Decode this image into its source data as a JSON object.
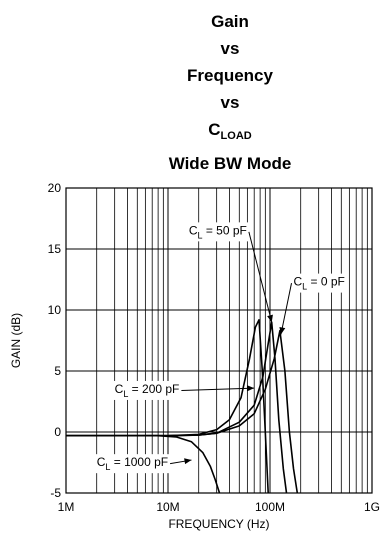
{
  "chart_data": {
    "type": "line",
    "title_lines": [
      "Gain",
      "vs",
      "Frequency",
      "vs"
    ],
    "title_cload_main": "C",
    "title_cload_sub": "LOAD",
    "subtitle": "Wide BW Mode",
    "xlabel": "FREQUENCY (Hz)",
    "ylabel": "GAIN (dB)",
    "xscale": "log",
    "xlim": [
      1000000,
      1000000000
    ],
    "ylim": [
      -5,
      20
    ],
    "x_ticks": [
      {
        "value": 1000000,
        "label": "1M"
      },
      {
        "value": 10000000,
        "label": "10M"
      },
      {
        "value": 100000000,
        "label": "100M"
      },
      {
        "value": 1000000000,
        "label": "1G"
      }
    ],
    "y_ticks": [
      -5,
      0,
      5,
      10,
      15,
      20
    ],
    "grid": true,
    "series": [
      {
        "name": "CL = 0 pF",
        "label_main": "C",
        "label_sub": "L",
        "label_rest": " = 0 pF",
        "x": [
          1000000,
          10000000,
          20000000,
          30000000,
          50000000,
          70000000,
          90000000,
          110000000,
          125000000,
          140000000,
          155000000,
          170000000,
          185000000
        ],
        "y": [
          -0.3,
          -0.3,
          -0.25,
          -0.1,
          0.5,
          1.5,
          3.5,
          6.0,
          8.3,
          5.0,
          0.0,
          -3.0,
          -5.0
        ]
      },
      {
        "name": "CL = 50 pF",
        "label_main": "C",
        "label_sub": "L",
        "label_rest": " = 50 pF",
        "x": [
          1000000,
          10000000,
          20000000,
          30000000,
          50000000,
          70000000,
          85000000,
          95000000,
          104000000,
          112000000,
          122000000,
          135000000,
          145000000
        ],
        "y": [
          -0.3,
          -0.3,
          -0.25,
          -0.1,
          0.8,
          2.2,
          4.5,
          7.0,
          9.0,
          6.0,
          1.0,
          -3.0,
          -5.0
        ]
      },
      {
        "name": "CL = 200 pF",
        "label_main": "C",
        "label_sub": "L",
        "label_rest": " = 200 pF",
        "x": [
          1000000,
          10000000,
          20000000,
          30000000,
          40000000,
          52000000,
          63000000,
          72000000,
          78000000,
          84000000,
          90000000,
          96000000
        ],
        "y": [
          -0.3,
          -0.3,
          -0.2,
          0.2,
          1.0,
          2.8,
          6.0,
          8.6,
          9.2,
          5.0,
          0.0,
          -5.0
        ]
      },
      {
        "name": "CL = 1000 pF",
        "label_main": "C",
        "label_sub": "L",
        "label_rest": " = 1000 pF",
        "x": [
          1000000,
          8000000,
          12000000,
          17000000,
          22000000,
          26000000,
          29000000,
          32000000
        ],
        "y": [
          -0.3,
          -0.3,
          -0.4,
          -0.8,
          -1.7,
          -2.8,
          -3.9,
          -5.0
        ]
      }
    ],
    "annotations": [
      {
        "series": 1,
        "label_xy": [
          16000000,
          16.2
        ],
        "arrow_to": [
          104000000,
          9.0
        ]
      },
      {
        "series": 0,
        "label_xy": [
          170000000,
          12.0
        ],
        "arrow_to": [
          128000000,
          8.0
        ]
      },
      {
        "series": 2,
        "label_xy": [
          3000000,
          3.2
        ],
        "arrow_to": [
          70000000,
          3.6
        ]
      },
      {
        "series": 3,
        "label_xy": [
          2000000,
          -2.8
        ],
        "arrow_to": [
          17000000,
          -2.3
        ]
      }
    ]
  }
}
